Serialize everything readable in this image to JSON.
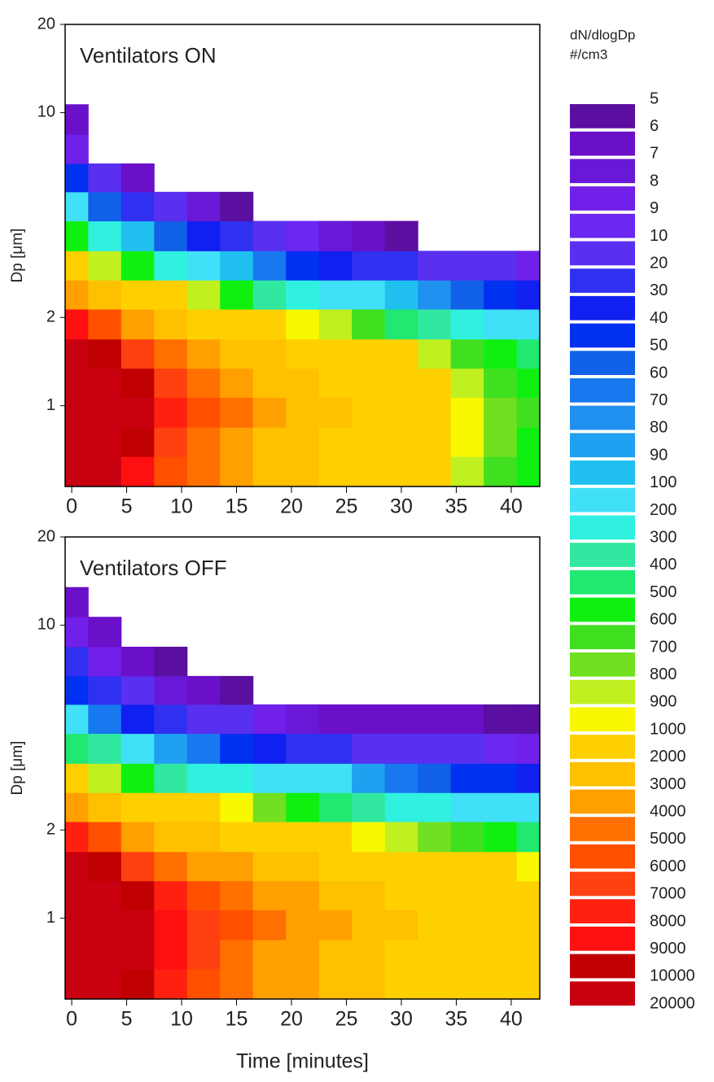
{
  "chart_data": [
    {
      "type": "heatmap",
      "annotation": "Ventilators ON",
      "ylabel": "Dp [μm]",
      "x": [
        0,
        3,
        6,
        9,
        12,
        15,
        18,
        21,
        24,
        27,
        30,
        33,
        36,
        39,
        42
      ],
      "y": [
        0.6,
        0.75,
        0.95,
        1.2,
        1.5,
        1.9,
        2.4,
        3,
        3.8,
        4.8,
        6,
        7.5,
        9.5,
        12
      ],
      "values": [
        [
          12000,
          11000,
          8000,
          5000,
          4000,
          3000,
          2500,
          2000,
          1800,
          1600,
          1400,
          1000,
          800,
          600,
          500
        ],
        [
          13000,
          12000,
          9000,
          6000,
          4500,
          3500,
          2800,
          2200,
          1900,
          1700,
          1500,
          1200,
          900,
          700,
          550
        ],
        [
          14000,
          13000,
          10000,
          7000,
          5000,
          4000,
          3000,
          2500,
          2000,
          1800,
          1500,
          1200,
          900,
          700,
          600
        ],
        [
          13000,
          12000,
          9000,
          6000,
          4500,
          3500,
          2800,
          2200,
          1900,
          1600,
          1400,
          1100,
          850,
          650,
          550
        ],
        [
          11000,
          9000,
          6500,
          4500,
          3500,
          2500,
          2000,
          1600,
          1400,
          1200,
          1000,
          800,
          600,
          500,
          400
        ],
        [
          8000,
          5000,
          3500,
          2500,
          1800,
          1400,
          1100,
          950,
          800,
          600,
          450,
          350,
          250,
          180,
          120
        ],
        [
          3000,
          2000,
          1500,
          1000,
          800,
          500,
          350,
          250,
          180,
          120,
          90,
          70,
          55,
          45,
          35
        ],
        [
          1500,
          800,
          500,
          250,
          150,
          90,
          60,
          45,
          35,
          25,
          20,
          15,
          12,
          10,
          8
        ],
        [
          500,
          200,
          90,
          50,
          30,
          20,
          12,
          9,
          7,
          6,
          5,
          4,
          0,
          0,
          0
        ],
        [
          150,
          50,
          20,
          10,
          7,
          5,
          0,
          0,
          0,
          0,
          0,
          0,
          0,
          0,
          0
        ],
        [
          40,
          12,
          6,
          0,
          0,
          0,
          0,
          0,
          0,
          0,
          0,
          0,
          0,
          0,
          0
        ],
        [
          8,
          0,
          0,
          0,
          0,
          0,
          0,
          0,
          0,
          0,
          0,
          0,
          0,
          0,
          0
        ],
        [
          6,
          0,
          0,
          0,
          0,
          0,
          0,
          0,
          0,
          0,
          0,
          0,
          0,
          0,
          0
        ],
        [
          0,
          0,
          0,
          0,
          0,
          0,
          0,
          0,
          0,
          0,
          0,
          0,
          0,
          0,
          0
        ]
      ],
      "xlim": [
        -0.6,
        42.6
      ],
      "xticks": [
        0,
        5,
        10,
        15,
        20,
        25,
        30,
        35,
        40
      ],
      "ylim": [
        0.53,
        20
      ],
      "yticks": [
        1,
        2,
        10,
        20
      ],
      "log_y": true
    },
    {
      "type": "heatmap",
      "annotation": "Ventilators OFF",
      "ylabel": "Dp [μm]",
      "xlabel": "Time [minutes]",
      "x": [
        0,
        3,
        6,
        9,
        12,
        15,
        18,
        21,
        24,
        27,
        30,
        33,
        36,
        39,
        42
      ],
      "y": [
        0.6,
        0.75,
        0.95,
        1.2,
        1.5,
        1.9,
        2.4,
        3,
        3.8,
        4.8,
        6,
        7.5,
        9.5,
        12
      ],
      "values": [
        [
          12000,
          12000,
          9000,
          7000,
          5000,
          4000,
          3500,
          3000,
          2500,
          2000,
          1800,
          1600,
          1500,
          1400,
          1300
        ],
        [
          13000,
          13000,
          10000,
          8000,
          6000,
          4500,
          3800,
          3200,
          2800,
          2200,
          1900,
          1700,
          1600,
          1500,
          1400
        ],
        [
          14000,
          14000,
          11000,
          8500,
          6500,
          5000,
          4000,
          3500,
          3000,
          2500,
          2000,
          1800,
          1700,
          1600,
          1500
        ],
        [
          13000,
          13000,
          9500,
          7000,
          5500,
          4500,
          3500,
          3000,
          2500,
          2000,
          1800,
          1600,
          1500,
          1400,
          1300
        ],
        [
          10000,
          9000,
          6000,
          4500,
          3500,
          3000,
          2500,
          2000,
          1800,
          1500,
          1300,
          1200,
          1100,
          1000,
          900
        ],
        [
          7000,
          5000,
          3500,
          2500,
          2000,
          1700,
          1400,
          1200,
          1100,
          950,
          800,
          700,
          600,
          500,
          450
        ],
        [
          3000,
          2500,
          1800,
          1400,
          1100,
          900,
          700,
          550,
          450,
          350,
          250,
          200,
          150,
          120,
          100
        ],
        [
          1000,
          800,
          500,
          300,
          250,
          200,
          150,
          120,
          100,
          80,
          60,
          50,
          45,
          40,
          35
        ],
        [
          400,
          300,
          150,
          80,
          60,
          45,
          35,
          25,
          20,
          18,
          15,
          12,
          10,
          9,
          8
        ],
        [
          150,
          60,
          30,
          20,
          12,
          10,
          8,
          7,
          6,
          6,
          6,
          6,
          6,
          5,
          5
        ],
        [
          40,
          20,
          10,
          7,
          6,
          5,
          0,
          0,
          0,
          0,
          0,
          0,
          0,
          0,
          0
        ],
        [
          20,
          8,
          6,
          5,
          0,
          0,
          0,
          0,
          0,
          0,
          0,
          0,
          0,
          0,
          0
        ],
        [
          8,
          6,
          0,
          0,
          0,
          0,
          0,
          0,
          0,
          0,
          0,
          0,
          0,
          0,
          0
        ],
        [
          6,
          0,
          0,
          0,
          0,
          0,
          0,
          0,
          0,
          0,
          0,
          0,
          0,
          0,
          0
        ]
      ],
      "xlim": [
        -0.6,
        42.6
      ],
      "xticks": [
        0,
        5,
        10,
        15,
        20,
        25,
        30,
        35,
        40
      ],
      "ylim": [
        0.53,
        20
      ],
      "yticks": [
        1,
        2,
        10,
        20
      ],
      "log_y": true
    },
    {
      "type": "colorbar",
      "title": "dN/dlogDp",
      "subtitle": "#/cm3",
      "levels": [
        5,
        6,
        7,
        8,
        9,
        10,
        20,
        30,
        40,
        50,
        60,
        70,
        80,
        90,
        100,
        200,
        300,
        400,
        500,
        600,
        700,
        800,
        900,
        1000,
        2000,
        3000,
        4000,
        5000,
        6000,
        7000,
        8000,
        9000,
        10000,
        20000
      ],
      "colors": [
        "#5a0fa0",
        "#6a10c8",
        "#6a18d8",
        "#7020e8",
        "#6a28f0",
        "#5a30f0",
        "#3030f0",
        "#1020f0",
        "#0030f0",
        "#1060e8",
        "#1878f0",
        "#2090f0",
        "#20a0f0",
        "#20c0f0",
        "#40e0f8",
        "#30f0e0",
        "#30e8a0",
        "#20e870",
        "#10f010",
        "#40e020",
        "#70e020",
        "#c0f020",
        "#f8f800",
        "#ffd000",
        "#ffc000",
        "#ffa000",
        "#ff7000",
        "#ff5000",
        "#ff4010",
        "#ff2010",
        "#ff1010",
        "#c00000",
        "#c80010"
      ]
    }
  ]
}
